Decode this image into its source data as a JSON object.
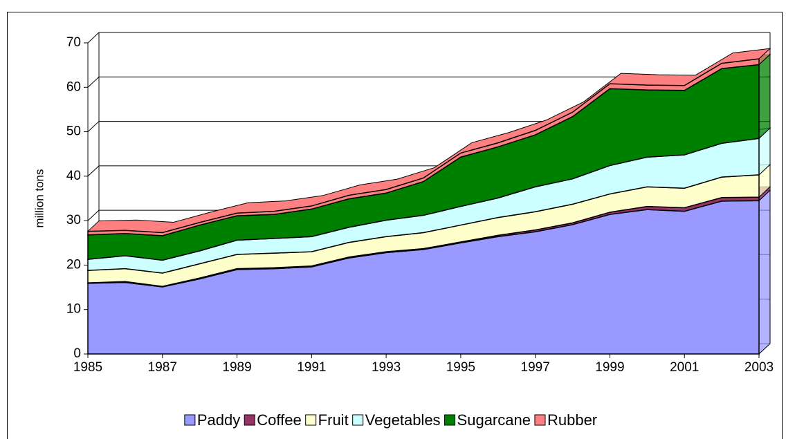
{
  "chart_data": {
    "type": "area",
    "stacked": true,
    "y_label": "million tons",
    "x": [
      1985,
      1986,
      1987,
      1988,
      1989,
      1990,
      1991,
      1992,
      1993,
      1994,
      1995,
      1996,
      1997,
      1998,
      1999,
      2000,
      2001,
      2002,
      2003
    ],
    "xlim": [
      1985,
      2003
    ],
    "xticks": [
      1985,
      1987,
      1989,
      1991,
      1993,
      1995,
      1997,
      1999,
      2001,
      2003
    ],
    "ylim": [
      0,
      70
    ],
    "yticks": [
      0,
      10,
      20,
      30,
      40,
      50,
      60,
      70
    ],
    "grid": true,
    "legend": "bottom",
    "series": [
      {
        "name": "Paddy",
        "color": "#9999ff",
        "values": [
          15.9,
          16.1,
          15.1,
          16.9,
          19.0,
          19.2,
          19.6,
          21.6,
          22.8,
          23.5,
          25.0,
          26.4,
          27.5,
          29.1,
          31.4,
          32.5,
          32.1,
          34.4,
          34.5
        ]
      },
      {
        "name": "Coffee",
        "color": "#993366",
        "values": [
          0.1,
          0.2,
          0.1,
          0.2,
          0.2,
          0.2,
          0.2,
          0.2,
          0.2,
          0.2,
          0.2,
          0.3,
          0.4,
          0.4,
          0.5,
          0.7,
          0.8,
          0.8,
          0.8
        ]
      },
      {
        "name": "Fruit",
        "color": "#ffffcc",
        "values": [
          2.8,
          2.9,
          3.0,
          3.2,
          3.2,
          3.3,
          3.2,
          3.3,
          3.4,
          3.6,
          3.8,
          4.0,
          4.1,
          4.2,
          4.1,
          4.4,
          4.4,
          4.6,
          5.0
        ]
      },
      {
        "name": "Vegetables",
        "color": "#ccffff",
        "values": [
          2.5,
          2.9,
          2.9,
          2.9,
          3.2,
          3.3,
          3.4,
          3.4,
          3.7,
          3.9,
          4.2,
          4.4,
          5.6,
          5.7,
          6.4,
          6.7,
          7.5,
          7.6,
          8.2
        ]
      },
      {
        "name": "Sugarcane",
        "color": "#008000",
        "values": [
          5.5,
          5.0,
          5.5,
          5.8,
          5.5,
          5.4,
          6.2,
          6.4,
          6.1,
          7.6,
          11.1,
          11.5,
          11.7,
          14.0,
          17.3,
          15.1,
          14.5,
          16.8,
          16.6
        ]
      },
      {
        "name": "Rubber",
        "color": "#ff8080",
        "values": [
          0.8,
          0.7,
          0.7,
          0.6,
          0.6,
          0.7,
          0.7,
          0.8,
          0.8,
          0.8,
          0.9,
          0.9,
          1.0,
          1.0,
          1.1,
          1.1,
          1.1,
          1.2,
          1.3
        ]
      }
    ]
  }
}
